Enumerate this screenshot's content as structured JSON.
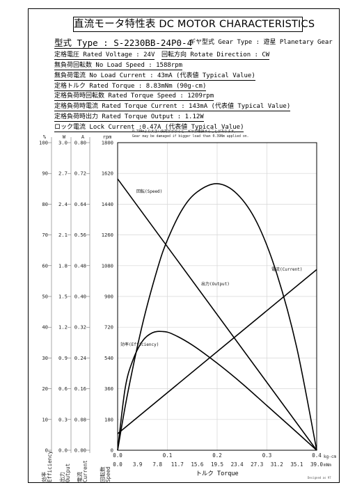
{
  "title": "直流モータ特性表 DC MOTOR CHARACTERISTICS",
  "specs": {
    "type": "型式 Type : S-2230BB-24P0-4",
    "gear_type": "ギヤ型式 Gear Type : 遊星 Planetary Gear",
    "rated_voltage": "定格電圧 Rated Voltage : 24V",
    "rotate_direction": "回転方向 Rotate Direction : CW",
    "no_load_speed": "無負荷回転数 No Load Speed : 1588rpm",
    "no_load_current": "無負荷電流 No Load Current : 43mA (代表値 Typical Value)",
    "rated_torque": "定格トルク Rated Torque : 8.83mNm (90g-cm)",
    "rated_torque_speed": "定格負荷時回転数 Rated Torque Speed : 1209rpm",
    "rated_torque_current": "定格負荷時電流 Rated Torque Current : 143mA (代表値 Typical Value)",
    "rated_torque_output": "定格負荷時出力 Rated Torque Output : 1.12W",
    "lock_current": "ロック電流 Lock Current :0.47A (代表値 Typical Value)"
  },
  "notes": {
    "jp": "0.39Nmより大きい負荷がかかると、ギヤが破損することがあります。",
    "en": "Gear may be damaged if bigger load than 0.39Nm applied on."
  },
  "footer": "Designed as 97",
  "chart_data": {
    "type": "line",
    "xlabel": "トルク Torque",
    "x_units": [
      "kg-cm",
      "mNm"
    ],
    "xlim": [
      0,
      0.4
    ],
    "x_ticks_kgcm": [
      "0.0",
      "0.1",
      "0.2",
      "0.3",
      "0.4"
    ],
    "x_ticks_mnm": [
      "0.0",
      "3.9",
      "7.8",
      "11.7",
      "15.6",
      "19.5",
      "23.4",
      "27.3",
      "31.2",
      "35.1",
      "39.0"
    ],
    "y_axes": [
      {
        "name": "効率 Efficiency",
        "unit": "%",
        "range": [
          0,
          100
        ],
        "ticks": [
          "0",
          "10",
          "20",
          "30",
          "40",
          "50",
          "60",
          "70",
          "80",
          "90",
          "100"
        ]
      },
      {
        "name": "出力 Output",
        "unit": "W",
        "range": [
          0,
          3.0
        ],
        "ticks": [
          "0.0",
          "0.3",
          "0.6",
          "0.9",
          "1.2",
          "1.5",
          "1.8",
          "2.1",
          "2.4",
          "2.7",
          "3.0"
        ]
      },
      {
        "name": "電流 Current",
        "unit": "A",
        "range": [
          0,
          0.8
        ],
        "ticks": [
          "0.00",
          "0.08",
          "0.16",
          "0.24",
          "0.32",
          "0.40",
          "0.48",
          "0.56",
          "0.64",
          "0.72",
          "0.80"
        ]
      },
      {
        "name": "回転数 Speed",
        "unit": "rpm",
        "range": [
          0,
          1800
        ],
        "ticks": [
          "0",
          "180",
          "360",
          "540",
          "720",
          "900",
          "1080",
          "1260",
          "1440",
          "1620",
          "1800"
        ]
      }
    ],
    "series": [
      {
        "name": "回転(Speed)",
        "axis": "rpm",
        "x": [
          0,
          0.4
        ],
        "y": [
          1588,
          0
        ]
      },
      {
        "name": "電流(Current)",
        "axis": "A",
        "x": [
          0,
          0.4
        ],
        "y": [
          0.043,
          0.47
        ]
      },
      {
        "name": "出力(Output)",
        "axis": "W",
        "x": [
          0,
          0.02,
          0.05,
          0.08,
          0.1,
          0.13,
          0.16,
          0.2,
          0.24,
          0.28,
          0.32,
          0.36,
          0.4
        ],
        "y": [
          0,
          0.55,
          1.23,
          1.77,
          2.05,
          2.35,
          2.52,
          2.6,
          2.5,
          2.22,
          1.72,
          1.0,
          0
        ]
      },
      {
        "name": "効率(Efficiency)",
        "axis": "%",
        "x": [
          0,
          0.015,
          0.03,
          0.05,
          0.07,
          0.09,
          0.11,
          0.15,
          0.2,
          0.25,
          0.3,
          0.35,
          0.4
        ],
        "y": [
          0,
          20,
          29,
          35.5,
          38.2,
          38.6,
          37.8,
          34.2,
          28.3,
          21.7,
          14.5,
          7.3,
          0
        ]
      }
    ],
    "grid": true
  },
  "colors": {
    "line": "#000000",
    "grid": "#d6d6d6",
    "background": "#ffffff"
  }
}
